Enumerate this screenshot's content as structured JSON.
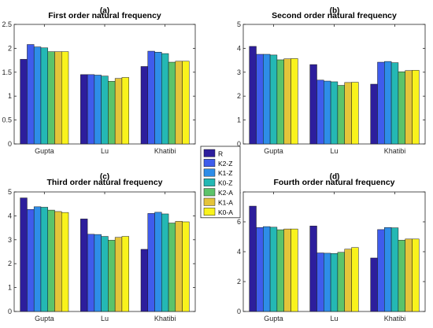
{
  "series": [
    {
      "name": "R",
      "color": "#2d1e9c"
    },
    {
      "name": "K2-Z",
      "color": "#3f5cec"
    },
    {
      "name": "K1-Z",
      "color": "#2e8de8"
    },
    {
      "name": "K0-Z",
      "color": "#24b8b4"
    },
    {
      "name": "K2-A",
      "color": "#5cc36a"
    },
    {
      "name": "K1-A",
      "color": "#e4c43a"
    },
    {
      "name": "K0-A",
      "color": "#f9f31c"
    }
  ],
  "chart_data": [
    {
      "type": "bar",
      "panel": "(a)",
      "title": "First order natural frequency",
      "categories": [
        "Gupta",
        "Lu",
        "Khatibi"
      ],
      "ylim": [
        0,
        2.5
      ],
      "yticks": [
        0,
        0.5,
        1,
        1.5,
        2,
        2.5
      ],
      "ytick_labels": [
        "0",
        "0.5",
        "1",
        "1.5",
        "2",
        "2.5"
      ],
      "series": [
        {
          "name": "R",
          "values": [
            1.77,
            1.45,
            1.62
          ]
        },
        {
          "name": "K2-Z",
          "values": [
            2.08,
            1.45,
            1.94
          ]
        },
        {
          "name": "K1-Z",
          "values": [
            2.03,
            1.44,
            1.92
          ]
        },
        {
          "name": "K0-Z",
          "values": [
            2.01,
            1.42,
            1.89
          ]
        },
        {
          "name": "K2-A",
          "values": [
            1.93,
            1.31,
            1.71
          ]
        },
        {
          "name": "K1-A",
          "values": [
            1.93,
            1.37,
            1.73
          ]
        },
        {
          "name": "K0-A",
          "values": [
            1.93,
            1.39,
            1.73
          ]
        }
      ]
    },
    {
      "type": "bar",
      "panel": "(b)",
      "title": "Second order natural frequency",
      "categories": [
        "Gupta",
        "Lu",
        "Khatibi"
      ],
      "ylim": [
        0,
        5
      ],
      "yticks": [
        0,
        1,
        2,
        3,
        4,
        5
      ],
      "ytick_labels": [
        "0",
        "1",
        "2",
        "3",
        "4",
        "5"
      ],
      "series": [
        {
          "name": "R",
          "values": [
            4.08,
            3.32,
            2.5
          ]
        },
        {
          "name": "K2-Z",
          "values": [
            3.75,
            2.67,
            3.42
          ]
        },
        {
          "name": "K1-Z",
          "values": [
            3.75,
            2.63,
            3.45
          ]
        },
        {
          "name": "K0-Z",
          "values": [
            3.72,
            2.6,
            3.4
          ]
        },
        {
          "name": "K2-A",
          "values": [
            3.52,
            2.45,
            3.02
          ]
        },
        {
          "name": "K1-A",
          "values": [
            3.56,
            2.57,
            3.07
          ]
        },
        {
          "name": "K0-A",
          "values": [
            3.57,
            2.58,
            3.08
          ]
        }
      ]
    },
    {
      "type": "bar",
      "panel": "(c)",
      "title": "Third order natural frequency",
      "categories": [
        "Gupta",
        "Lu",
        "Khatibi"
      ],
      "ylim": [
        0,
        5
      ],
      "yticks": [
        0,
        1,
        2,
        3,
        4,
        5
      ],
      "ytick_labels": [
        "0",
        "1",
        "2",
        "3",
        "4",
        "5"
      ],
      "series": [
        {
          "name": "R",
          "values": [
            4.75,
            3.87,
            2.6
          ]
        },
        {
          "name": "K2-Z",
          "values": [
            4.27,
            3.23,
            4.1
          ]
        },
        {
          "name": "K1-Z",
          "values": [
            4.38,
            3.22,
            4.15
          ]
        },
        {
          "name": "K0-Z",
          "values": [
            4.36,
            3.14,
            4.08
          ]
        },
        {
          "name": "K2-A",
          "values": [
            4.24,
            2.98,
            3.7
          ]
        },
        {
          "name": "K1-A",
          "values": [
            4.18,
            3.1,
            3.77
          ]
        },
        {
          "name": "K0-A",
          "values": [
            4.14,
            3.14,
            3.75
          ]
        }
      ]
    },
    {
      "type": "bar",
      "panel": "(d)",
      "title": "Fourth order natural frequency",
      "categories": [
        "Gupta",
        "Lu",
        "Khatibi"
      ],
      "ylim": [
        0,
        8
      ],
      "yticks": [
        0,
        2,
        4,
        6,
        8
      ],
      "ytick_labels": [
        "0",
        "2",
        "4",
        "6",
        "8"
      ],
      "series": [
        {
          "name": "R",
          "values": [
            7.05,
            5.72,
            3.58
          ]
        },
        {
          "name": "K2-Z",
          "values": [
            5.62,
            3.92,
            5.48
          ]
        },
        {
          "name": "K1-Z",
          "values": [
            5.68,
            3.9,
            5.62
          ]
        },
        {
          "name": "K0-Z",
          "values": [
            5.64,
            3.88,
            5.6
          ]
        },
        {
          "name": "K2-A",
          "values": [
            5.47,
            3.96,
            4.77
          ]
        },
        {
          "name": "K1-A",
          "values": [
            5.52,
            4.17,
            4.85
          ]
        },
        {
          "name": "K0-A",
          "values": [
            5.52,
            4.28,
            4.85
          ]
        }
      ]
    }
  ]
}
